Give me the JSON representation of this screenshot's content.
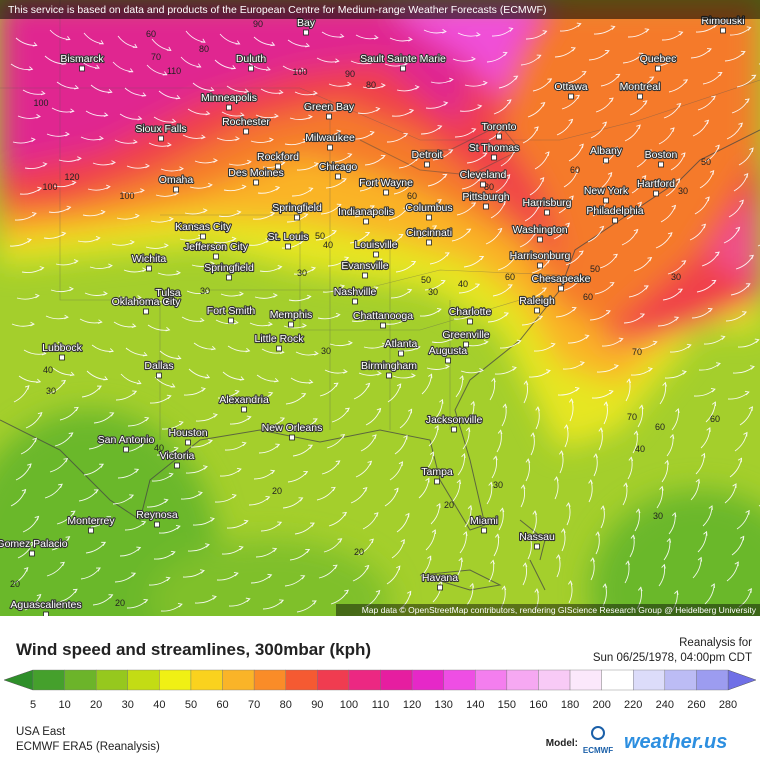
{
  "notice": "This service is based on data and products of the European Centre for Medium-range Weather Forecasts (ECMWF)",
  "map": {
    "cities": [
      "Bismarck",
      "Duluth",
      "Bay",
      "Sault Sainte Marie",
      "Rimouski",
      "Quebec",
      "Ottawa",
      "Montreal",
      "Minneapolis",
      "Green Bay",
      "Rochester",
      "Sioux Falls",
      "Milwaukee",
      "Toronto",
      "St Thomas",
      "Albany",
      "Boston",
      "Rockford",
      "Des Moines",
      "Chicago",
      "Detroit",
      "Cleveland",
      "Omaha",
      "Fort Wayne",
      "Harrisburg",
      "New York",
      "Hartford",
      "Pittsburgh",
      "Philadelphia",
      "Springfield",
      "Indianapolis",
      "Columbus",
      "Kansas City",
      "Washington",
      "St. Louis",
      "Louisville",
      "Cincinnati",
      "Jefferson City",
      "Harrisonburg",
      "Wichita",
      "Springfield",
      "Evansville",
      "Chesapeake",
      "Tulsa",
      "Oklahoma City",
      "Nashville",
      "Raleigh",
      "Fort Smith",
      "Memphis",
      "Chattanooga",
      "Charlotte",
      "Greenville",
      "Little Rock",
      "Atlanta",
      "Augusta",
      "Lubbock",
      "Dallas",
      "Birmingham",
      "Alexandria",
      "Jacksonville",
      "Houston",
      "New Orleans",
      "San Antonio",
      "Victoria",
      "Tampa",
      "Monterrey",
      "Reynosa",
      "Miami",
      "Nassau",
      "Gomez Palacio",
      "Havana",
      "Aguascalientes"
    ],
    "contour_labels": [
      60,
      80,
      90,
      70,
      110,
      100,
      90,
      80,
      100,
      120,
      100,
      100,
      60,
      80,
      60,
      50,
      40,
      30,
      50,
      40,
      30,
      60,
      50,
      60,
      50,
      30,
      30,
      70,
      60,
      70,
      60,
      40,
      30,
      30,
      30,
      40,
      20,
      20,
      20,
      30,
      20,
      20,
      40,
      30
    ],
    "attribution": "Map data © OpenStreetMap contributors, rendering GIScience Research Group @ Heidelberg University"
  },
  "legend": {
    "title": "Wind speed and streamlines, 300mbar (kph)",
    "ticks": [
      5,
      10,
      20,
      30,
      40,
      50,
      60,
      70,
      80,
      90,
      100,
      110,
      120,
      130,
      140,
      150,
      160,
      180,
      200,
      220,
      240,
      260,
      280
    ],
    "below_color": "#2f8f2a",
    "above_color": "#6f6fe6",
    "colors": [
      "#45a02c",
      "#6cb42a",
      "#96c81e",
      "#c3dc14",
      "#f0f014",
      "#fad21e",
      "#fab428",
      "#fa8c28",
      "#f55a32",
      "#f03c50",
      "#ec2882",
      "#e61ea0",
      "#e628c8",
      "#ee4ee4",
      "#f47eee",
      "#f6a8f2",
      "#f8caf6",
      "#fbe8fb",
      "#ffffff",
      "#dcdcfa",
      "#bcbcf5",
      "#9c9cf0"
    ]
  },
  "info": {
    "reanalysis": "Reanalysis for",
    "time": "Sun 06/25/1978, 04:00pm CDT",
    "region": "USA East",
    "model": "ECMWF ERA5 (Reanalysis)",
    "model_label": "Model:",
    "logo": "ECMWF",
    "brand": "weather.us"
  }
}
